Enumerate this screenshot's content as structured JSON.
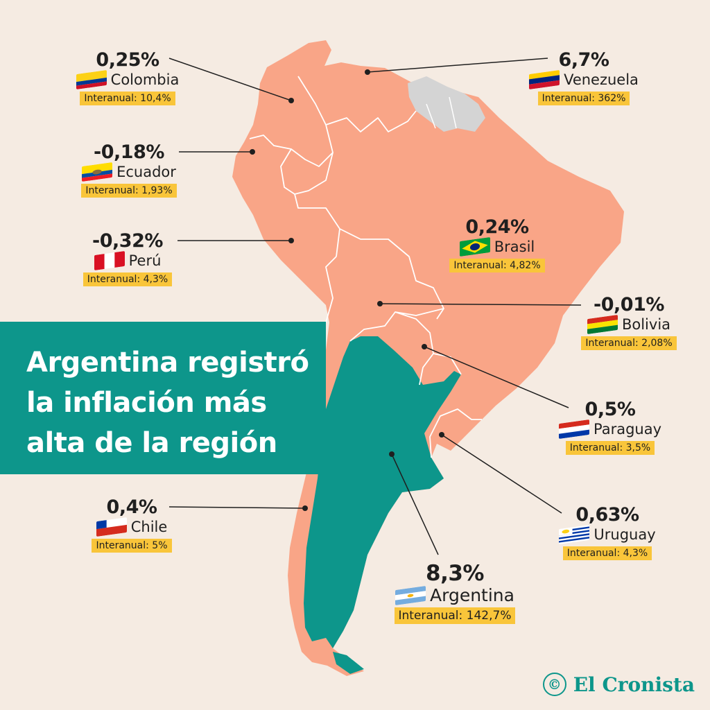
{
  "headline": "Argentina registró la inflación más alta de la región",
  "brand": {
    "icon": "cronista-logo-icon",
    "name": "El Cronista"
  },
  "colors": {
    "background": "#f5ebe2",
    "land": "#f9a587",
    "highlight": "#0d968b",
    "guyanas": "#d4d4d4",
    "badge": "#f9c53a"
  },
  "countries": {
    "colombia": {
      "pct": "0,25%",
      "name": "Colombia",
      "interanual": "Interanual: 10,4%",
      "flag": "colombia-flag-icon"
    },
    "venezuela": {
      "pct": "6,7%",
      "name": "Venezuela",
      "interanual": "Interanual: 362%",
      "flag": "venezuela-flag-icon"
    },
    "ecuador": {
      "pct": "-0,18%",
      "name": "Ecuador",
      "interanual": "Interanual: 1,93%",
      "flag": "ecuador-flag-icon"
    },
    "peru": {
      "pct": "-0,32%",
      "name": "Perú",
      "interanual": "Interanual: 4,3%",
      "flag": "peru-flag-icon"
    },
    "brasil": {
      "pct": "0,24%",
      "name": "Brasil",
      "interanual": "Interanual: 4,82%",
      "flag": "brazil-flag-icon"
    },
    "bolivia": {
      "pct": "-0,01%",
      "name": "Bolivia",
      "interanual": "Interanual: 2,08%",
      "flag": "bolivia-flag-icon"
    },
    "paraguay": {
      "pct": "0,5%",
      "name": "Paraguay",
      "interanual": "Interanual: 3,5%",
      "flag": "paraguay-flag-icon"
    },
    "chile": {
      "pct": "0,4%",
      "name": "Chile",
      "interanual": "Interanual: 5%",
      "flag": "chile-flag-icon"
    },
    "uruguay": {
      "pct": "0,63%",
      "name": "Uruguay",
      "interanual": "Interanual: 4,3%",
      "flag": "uruguay-flag-icon"
    },
    "argentina": {
      "pct": "8,3%",
      "name": "Argentina",
      "interanual": "Interanual: 142,7%",
      "flag": "argentina-flag-icon"
    }
  }
}
